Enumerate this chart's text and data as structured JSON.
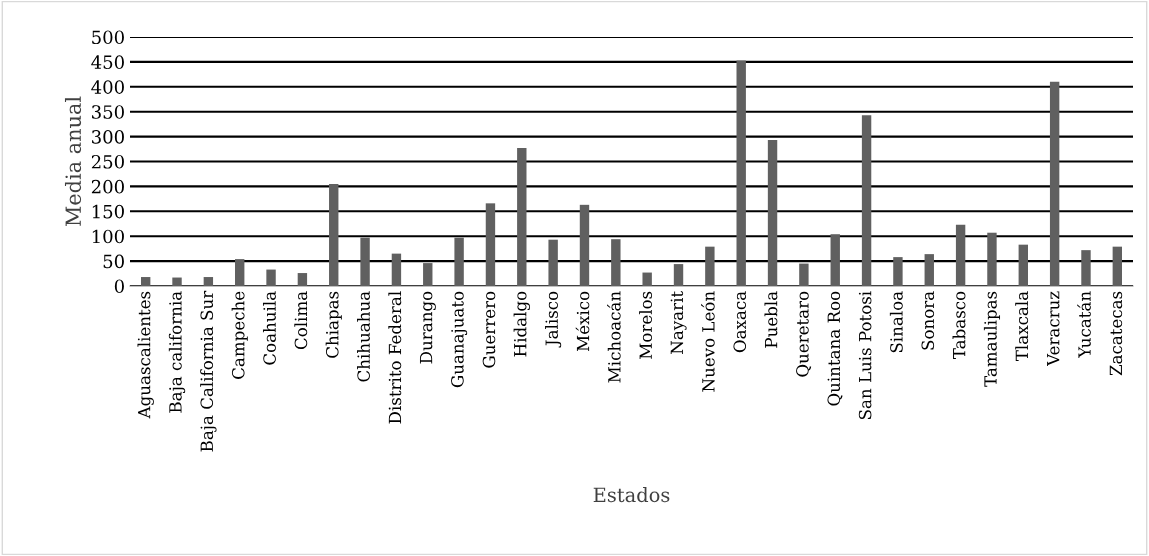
{
  "chart_data": {
    "type": "bar",
    "xlabel": "Estados",
    "ylabel": "Media anual",
    "categories": [
      "Aguascalientes",
      "Baja california",
      "Baja California Sur",
      "Campeche",
      "Coahuila",
      "Colima",
      "Chiapas",
      "Chihuahua",
      "Distrito Federal",
      "Durango",
      "Guanajuato",
      "Guerrero",
      "Hidalgo",
      "Jalisco",
      "México",
      "Michoacán",
      "Morelos",
      "Nayarit",
      "Nuevo León",
      "Oaxaca",
      "Puebla",
      "Queretaro",
      "Quintana Roo",
      "San Luis Potosi",
      "Sinaloa",
      "Sonora",
      "Tabasco",
      "Tamaulipas",
      "Tlaxcala",
      "Veracruz",
      "Yucatán",
      "Zacatecas"
    ],
    "values": [
      18,
      17,
      18,
      54,
      33,
      26,
      205,
      97,
      65,
      46,
      97,
      166,
      277,
      93,
      163,
      94,
      27,
      44,
      79,
      453,
      293,
      45,
      104,
      343,
      58,
      64,
      123,
      107,
      83,
      410,
      72,
      79
    ],
    "color": "#606060",
    "ylim": [
      0,
      500
    ],
    "yticks": [
      0,
      50,
      100,
      150,
      200,
      250,
      300,
      350,
      400,
      450,
      500
    ],
    "grid": "y"
  }
}
